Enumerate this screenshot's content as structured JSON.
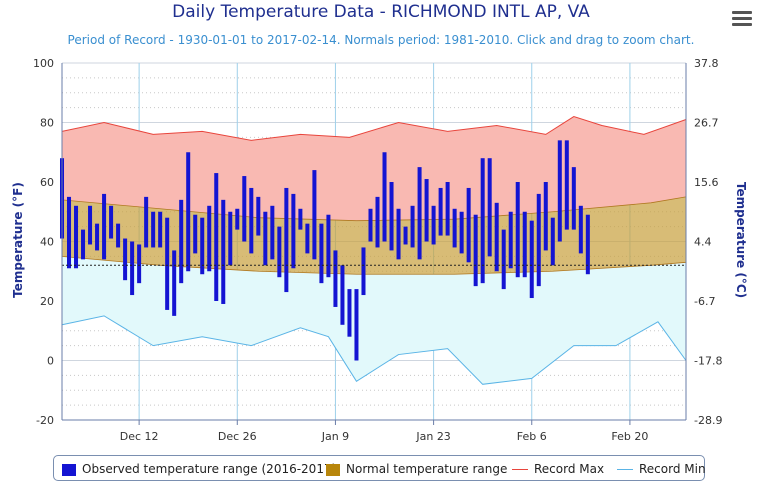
{
  "title": "Daily Temperature Data - RICHMOND INTL AP, VA",
  "subtitle": "Period of Record - 1930-01-01 to 2017-02-14. Normals period: 1981-2010. Click and drag to zoom chart.",
  "menu_icon": "hamburger-menu-icon",
  "colors": {
    "observed": "#1414d2",
    "normal_fill": "#c8a03c",
    "record_max_line": "#e8453c",
    "record_max_fill": "#f9b9b2",
    "record_min_line": "#5ab4e6",
    "record_min_fill": "#e2f9fb",
    "axis_title": "#1f2f8f"
  },
  "legend": [
    {
      "label": "Observed temperature range (2016-2017)",
      "swatch": "box",
      "color": "#1414d2"
    },
    {
      "label": "Normal temperature range",
      "swatch": "box",
      "color": "#b8860b"
    },
    {
      "label": "Record Max",
      "swatch": "line",
      "color": "#e8453c"
    },
    {
      "label": "Record Min",
      "swatch": "line",
      "color": "#5ab4e6"
    }
  ],
  "chart_data": {
    "type": "bar",
    "title": "Daily Temperature Data - RICHMOND INTL AP, VA",
    "subtitle": "Period of Record - 1930-01-01 to 2017-02-14. Normals period: 1981-2010. Click and drag to zoom chart.",
    "ylabel": "Temperature (°F)",
    "ylabel_right": "Temperature (°C)",
    "ylim": [
      -20,
      100
    ],
    "yticks": [
      -20,
      0,
      20,
      40,
      60,
      80,
      100
    ],
    "yticks_right": [
      "-28.9",
      "-17.8",
      "-6.7",
      "4.4",
      "15.6",
      "26.7",
      "37.8"
    ],
    "xlim": [
      "2016-12-01",
      "2017-02-28"
    ],
    "xticks": [
      "Dec 12",
      "Dec 26",
      "Jan 9",
      "Jan 23",
      "Feb 6",
      "Feb 20"
    ],
    "xtick_dates": [
      "2016-12-12",
      "2016-12-26",
      "2017-01-09",
      "2017-01-23",
      "2017-02-06",
      "2017-02-20"
    ],
    "freezing_line_f": 32,
    "grid": true,
    "legend_position": "bottom",
    "series": [
      {
        "name": "Observed temperature range (2016-2017)",
        "type": "range-bar",
        "dates": [
          "2016-12-01",
          "2016-12-02",
          "2016-12-03",
          "2016-12-04",
          "2016-12-05",
          "2016-12-06",
          "2016-12-07",
          "2016-12-08",
          "2016-12-09",
          "2016-12-10",
          "2016-12-11",
          "2016-12-12",
          "2016-12-13",
          "2016-12-14",
          "2016-12-15",
          "2016-12-16",
          "2016-12-17",
          "2016-12-18",
          "2016-12-19",
          "2016-12-20",
          "2016-12-21",
          "2016-12-22",
          "2016-12-23",
          "2016-12-24",
          "2016-12-25",
          "2016-12-26",
          "2016-12-27",
          "2016-12-28",
          "2016-12-29",
          "2016-12-30",
          "2016-12-31",
          "2017-01-01",
          "2017-01-02",
          "2017-01-03",
          "2017-01-04",
          "2017-01-05",
          "2017-01-06",
          "2017-01-07",
          "2017-01-08",
          "2017-01-09",
          "2017-01-10",
          "2017-01-11",
          "2017-01-12",
          "2017-01-13",
          "2017-01-14",
          "2017-01-15",
          "2017-01-16",
          "2017-01-17",
          "2017-01-18",
          "2017-01-19",
          "2017-01-20",
          "2017-01-21",
          "2017-01-22",
          "2017-01-23",
          "2017-01-24",
          "2017-01-25",
          "2017-01-26",
          "2017-01-27",
          "2017-01-28",
          "2017-01-29",
          "2017-01-30",
          "2017-01-31",
          "2017-02-01",
          "2017-02-02",
          "2017-02-03",
          "2017-02-04",
          "2017-02-05",
          "2017-02-06",
          "2017-02-07",
          "2017-02-08",
          "2017-02-09",
          "2017-02-10",
          "2017-02-11",
          "2017-02-12",
          "2017-02-13",
          "2017-02-14"
        ],
        "low": [
          41,
          31,
          31,
          34,
          39,
          37,
          34,
          41,
          38,
          27,
          22,
          26,
          38,
          38,
          38,
          17,
          15,
          26,
          30,
          36,
          29,
          30,
          20,
          19,
          32,
          44,
          40,
          36,
          42,
          32,
          34,
          28,
          23,
          31,
          44,
          36,
          34,
          26,
          28,
          18,
          12,
          8,
          0,
          22,
          40,
          38,
          40,
          37,
          34,
          39,
          38,
          34,
          40,
          39,
          42,
          42,
          38,
          36,
          33,
          25,
          26,
          35,
          30,
          24,
          31,
          28,
          28,
          21,
          25,
          37,
          32,
          40,
          44,
          44,
          36,
          29
        ],
        "high": [
          68,
          55,
          52,
          44,
          52,
          46,
          56,
          52,
          46,
          41,
          40,
          39,
          55,
          50,
          50,
          48,
          37,
          54,
          70,
          49,
          48,
          52,
          63,
          54,
          50,
          51,
          62,
          58,
          55,
          50,
          52,
          45,
          58,
          56,
          51,
          46,
          64,
          46,
          49,
          37,
          32,
          24,
          24,
          38,
          51,
          55,
          70,
          60,
          51,
          45,
          52,
          65,
          61,
          52,
          58,
          60,
          51,
          50,
          58,
          49,
          68,
          68,
          53,
          44,
          50,
          60,
          50,
          47,
          56,
          60,
          48,
          74,
          74,
          65,
          52,
          49
        ]
      },
      {
        "name": "Normal temperature range",
        "type": "area-range",
        "dates": [
          "2016-12-01",
          "2016-12-15",
          "2016-12-29",
          "2017-01-12",
          "2017-01-26",
          "2017-02-09",
          "2017-02-23",
          "2017-02-28"
        ],
        "low": [
          35,
          32,
          30,
          29,
          29,
          30,
          32,
          33
        ],
        "high": [
          54,
          51,
          48,
          47,
          47.5,
          50,
          53,
          55
        ]
      },
      {
        "name": "Record Max",
        "type": "line",
        "dates": [
          "2016-12-01",
          "2016-12-07",
          "2016-12-14",
          "2016-12-21",
          "2016-12-28",
          "2017-01-04",
          "2017-01-11",
          "2017-01-18",
          "2017-01-25",
          "2017-02-01",
          "2017-02-08",
          "2017-02-12",
          "2017-02-16",
          "2017-02-22",
          "2017-02-28"
        ],
        "values": [
          77,
          80,
          76,
          77,
          74,
          76,
          75,
          80,
          77,
          79,
          76,
          82,
          79,
          76,
          81
        ]
      },
      {
        "name": "Record Min",
        "type": "line",
        "dates": [
          "2016-12-01",
          "2016-12-07",
          "2016-12-14",
          "2016-12-21",
          "2016-12-28",
          "2017-01-04",
          "2017-01-08",
          "2017-01-12",
          "2017-01-18",
          "2017-01-25",
          "2017-01-30",
          "2017-02-06",
          "2017-02-12",
          "2017-02-18",
          "2017-02-24",
          "2017-02-28"
        ],
        "values": [
          12,
          15,
          5,
          8,
          5,
          11,
          8,
          -7,
          2,
          4,
          -8,
          -6,
          5,
          5,
          13,
          0
        ]
      }
    ]
  }
}
